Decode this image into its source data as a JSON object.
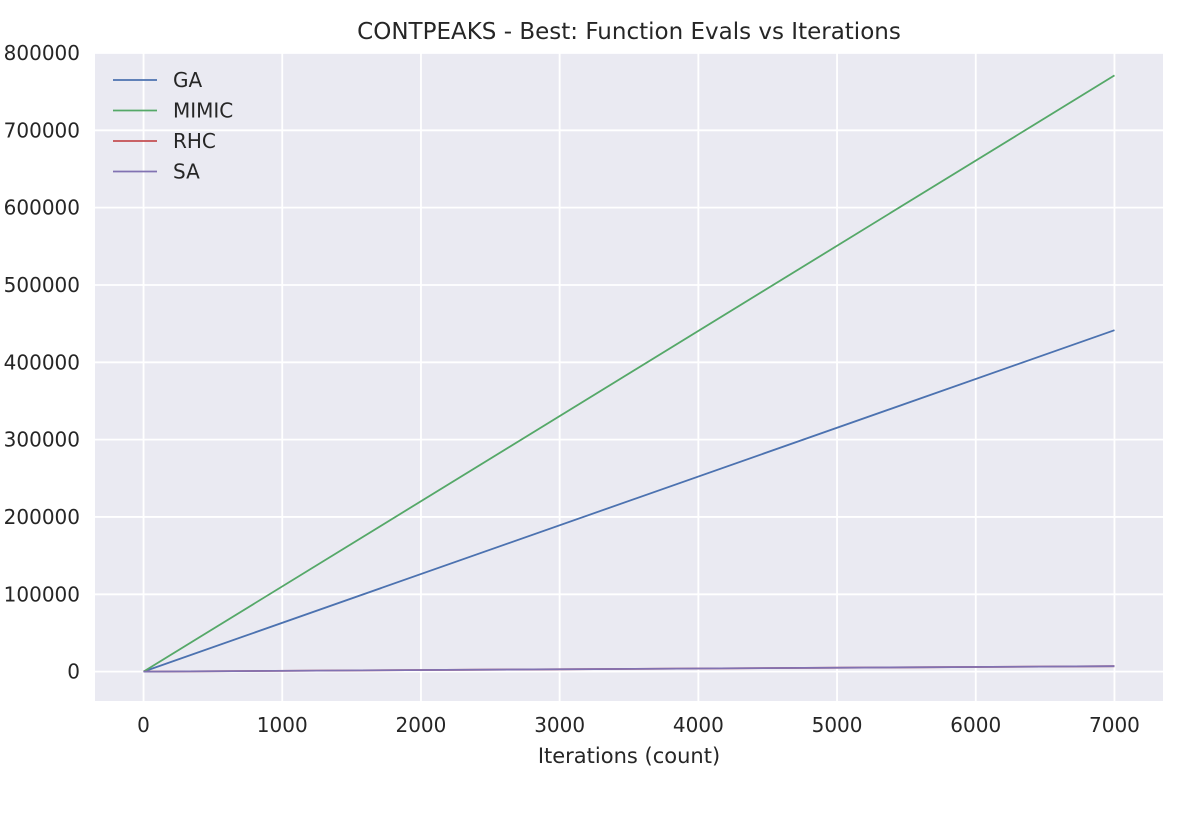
{
  "chart_data": {
    "type": "line",
    "title": "CONTPEAKS - Best: Function Evals vs Iterations",
    "xlabel": "Iterations (count)",
    "ylabel": "",
    "xlim": [
      -350,
      7350
    ],
    "ylim": [
      -38000,
      800000
    ],
    "xticks": [
      0,
      1000,
      2000,
      3000,
      4000,
      5000,
      6000,
      7000
    ],
    "yticks": [
      0,
      100000,
      200000,
      300000,
      400000,
      500000,
      600000,
      700000,
      800000
    ],
    "grid": true,
    "legend": "top-left",
    "series": [
      {
        "name": "GA",
        "color": "#4c72b0",
        "x": [
          0,
          7000
        ],
        "y": [
          0,
          441500
        ]
      },
      {
        "name": "MIMIC",
        "color": "#55a868",
        "x": [
          0,
          7000
        ],
        "y": [
          0,
          771000
        ]
      },
      {
        "name": "RHC",
        "color": "#c44e52",
        "x": [
          0,
          7000
        ],
        "y": [
          0,
          7000
        ]
      },
      {
        "name": "SA",
        "color": "#8172b2",
        "x": [
          0,
          7000
        ],
        "y": [
          0,
          7000
        ]
      }
    ]
  }
}
